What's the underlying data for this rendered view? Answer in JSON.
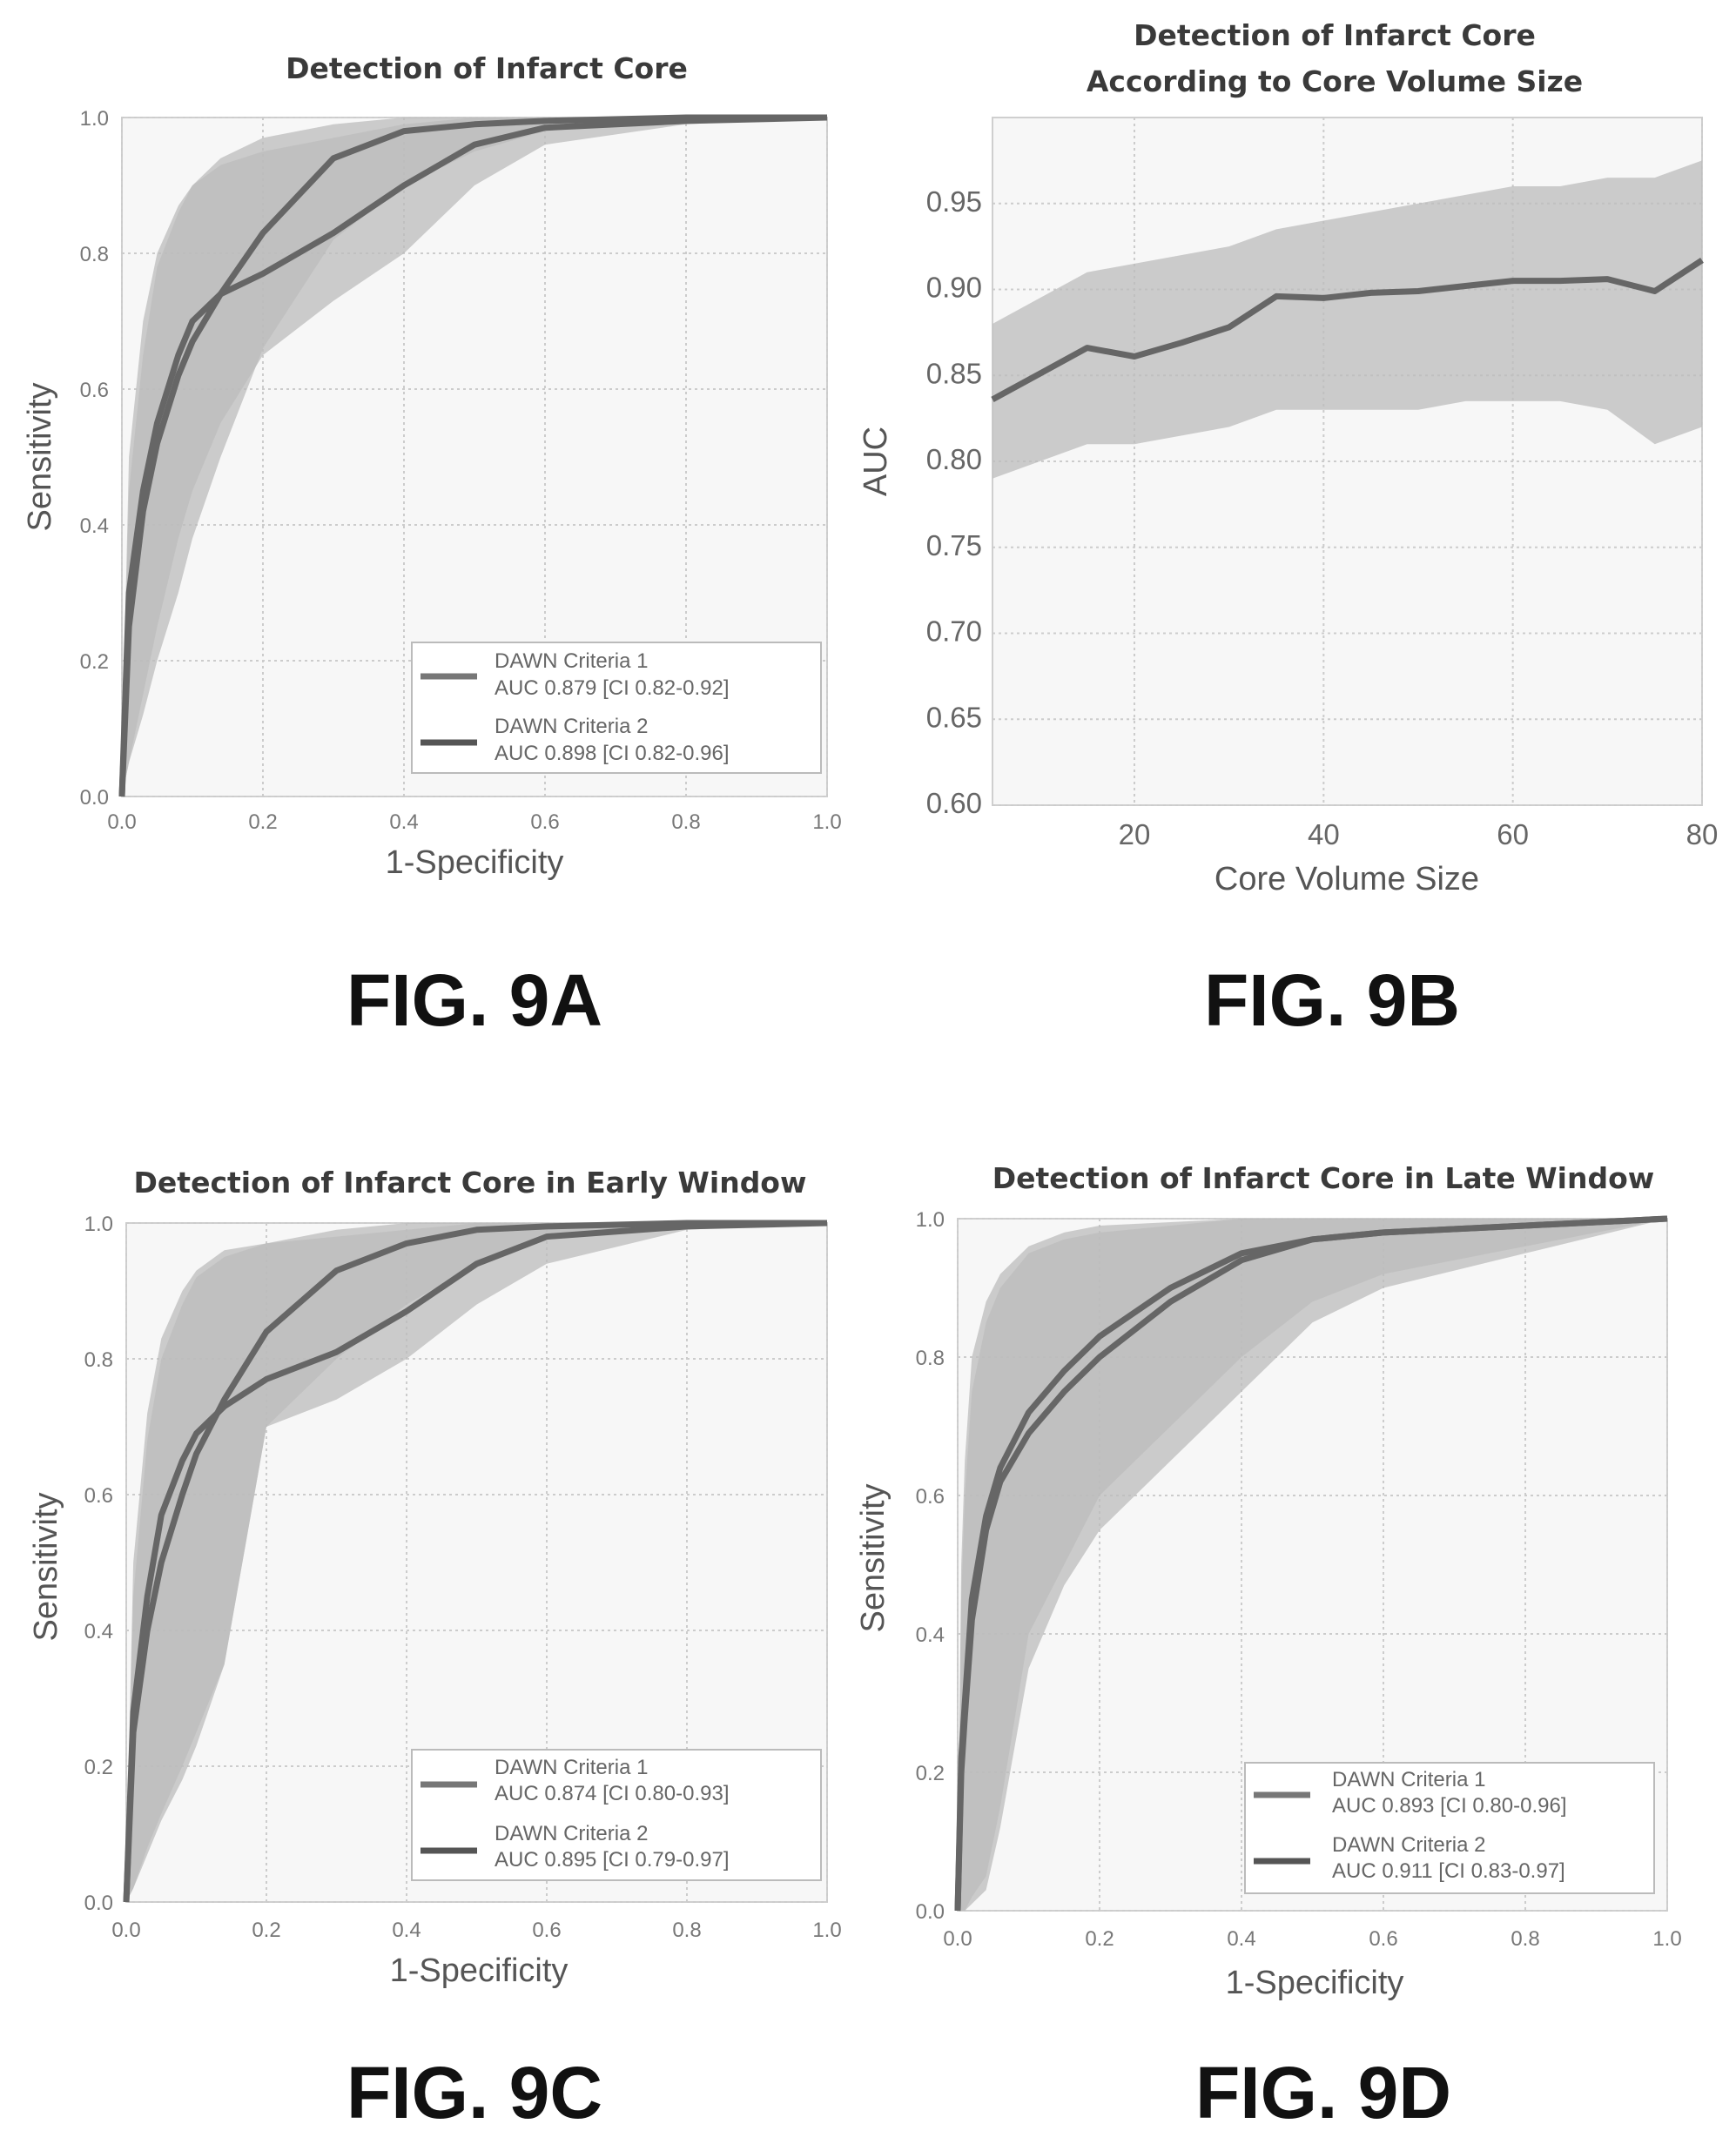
{
  "chart_data": [
    {
      "type": "line",
      "figure_label": "FIG. 9A",
      "title": "Detection of Infarct Core",
      "xlabel": "1-Specificity",
      "ylabel": "Sensitivity",
      "xlim": [
        0,
        1
      ],
      "ylim": [
        0,
        1
      ],
      "xticks": [
        "0.0",
        "0.2",
        "0.4",
        "0.6",
        "0.8",
        "1.0"
      ],
      "yticks": [
        "0.0",
        "0.2",
        "0.4",
        "0.6",
        "0.8",
        "1.0"
      ],
      "grid": true,
      "legend": "bottom-right",
      "series": [
        {
          "name": "DAWN Criteria 1",
          "auc_label": "AUC 0.879 [CI 0.82-0.92]",
          "x": [
            0,
            0.01,
            0.03,
            0.05,
            0.08,
            0.1,
            0.14,
            0.2,
            0.3,
            0.4,
            0.5,
            0.6,
            0.8,
            1.0
          ],
          "y": [
            0,
            0.3,
            0.45,
            0.55,
            0.65,
            0.7,
            0.74,
            0.77,
            0.83,
            0.9,
            0.96,
            0.985,
            0.995,
            1.0
          ],
          "band_low": [
            0,
            0.05,
            0.15,
            0.25,
            0.38,
            0.45,
            0.55,
            0.65,
            0.73,
            0.8,
            0.9,
            0.96,
            0.99,
            1.0
          ],
          "band_high": [
            0.05,
            0.5,
            0.7,
            0.8,
            0.87,
            0.9,
            0.93,
            0.95,
            0.97,
            0.99,
            1.0,
            1.0,
            1.0,
            1.0
          ]
        },
        {
          "name": "DAWN Criteria 2",
          "auc_label": "AUC 0.898 [CI 0.82-0.96]",
          "x": [
            0,
            0.01,
            0.03,
            0.05,
            0.08,
            0.1,
            0.14,
            0.2,
            0.3,
            0.4,
            0.5,
            0.6,
            0.8,
            1.0
          ],
          "y": [
            0,
            0.25,
            0.42,
            0.52,
            0.62,
            0.67,
            0.74,
            0.83,
            0.94,
            0.98,
            0.99,
            0.995,
            1.0,
            1.0
          ],
          "band_low": [
            0,
            0.05,
            0.12,
            0.2,
            0.3,
            0.38,
            0.5,
            0.66,
            0.82,
            0.9,
            0.95,
            0.98,
            0.995,
            1.0
          ],
          "band_high": [
            0.05,
            0.45,
            0.65,
            0.78,
            0.86,
            0.9,
            0.94,
            0.97,
            0.99,
            1.0,
            1.0,
            1.0,
            1.0,
            1.0
          ]
        }
      ]
    },
    {
      "type": "line",
      "figure_label": "FIG. 9B",
      "title": "Detection of Infarct Core",
      "subtitle": "According to Core Volume Size",
      "xlabel": "Core Volume Size",
      "ylabel": "AUC",
      "xlim": [
        5,
        80
      ],
      "ylim": [
        0.6,
        1.0
      ],
      "xticks": [
        "20",
        "40",
        "60",
        "80"
      ],
      "yticks": [
        "0.60",
        "0.65",
        "0.70",
        "0.75",
        "0.80",
        "0.85",
        "0.90",
        "0.95"
      ],
      "grid": true,
      "series": [
        {
          "x": [
            5,
            10,
            15,
            20,
            25,
            30,
            35,
            40,
            45,
            50,
            55,
            60,
            65,
            70,
            75,
            80
          ],
          "y": [
            0.836,
            0.851,
            0.866,
            0.861,
            0.869,
            0.878,
            0.896,
            0.895,
            0.898,
            0.899,
            0.902,
            0.905,
            0.905,
            0.906,
            0.899,
            0.917
          ],
          "band_low": [
            0.79,
            0.8,
            0.81,
            0.81,
            0.815,
            0.82,
            0.83,
            0.83,
            0.83,
            0.83,
            0.835,
            0.835,
            0.835,
            0.83,
            0.81,
            0.82
          ],
          "band_high": [
            0.88,
            0.895,
            0.91,
            0.915,
            0.92,
            0.925,
            0.935,
            0.94,
            0.945,
            0.95,
            0.955,
            0.96,
            0.96,
            0.965,
            0.965,
            0.975
          ]
        }
      ]
    },
    {
      "type": "line",
      "figure_label": "FIG. 9C",
      "title": "Detection of Infarct Core in Early Window",
      "xlabel": "1-Specificity",
      "ylabel": "Sensitivity",
      "xlim": [
        0,
        1
      ],
      "ylim": [
        0,
        1
      ],
      "xticks": [
        "0.0",
        "0.2",
        "0.4",
        "0.6",
        "0.8",
        "1.0"
      ],
      "yticks": [
        "0.0",
        "0.2",
        "0.4",
        "0.6",
        "0.8",
        "1.0"
      ],
      "grid": true,
      "legend": "bottom-right",
      "series": [
        {
          "name": "DAWN Criteria 1",
          "auc_label": "AUC 0.874 [CI 0.80-0.93]",
          "x": [
            0,
            0.01,
            0.03,
            0.05,
            0.08,
            0.1,
            0.14,
            0.2,
            0.3,
            0.4,
            0.5,
            0.6,
            0.8,
            1.0
          ],
          "y": [
            0,
            0.28,
            0.45,
            0.57,
            0.65,
            0.69,
            0.73,
            0.77,
            0.81,
            0.87,
            0.94,
            0.98,
            0.995,
            1.0
          ],
          "band_low": [
            0,
            0.02,
            0.08,
            0.13,
            0.2,
            0.25,
            0.35,
            0.7,
            0.74,
            0.8,
            0.88,
            0.94,
            0.99,
            1.0
          ],
          "band_high": [
            0.05,
            0.5,
            0.72,
            0.83,
            0.9,
            0.93,
            0.96,
            0.97,
            0.98,
            0.99,
            1.0,
            1.0,
            1.0,
            1.0
          ]
        },
        {
          "name": "DAWN Criteria 2",
          "auc_label": "AUC 0.895 [CI 0.79-0.97]",
          "x": [
            0,
            0.01,
            0.03,
            0.05,
            0.08,
            0.1,
            0.14,
            0.2,
            0.3,
            0.4,
            0.5,
            0.6,
            0.8,
            1.0
          ],
          "y": [
            0,
            0.25,
            0.4,
            0.5,
            0.6,
            0.66,
            0.74,
            0.84,
            0.93,
            0.97,
            0.99,
            0.995,
            1.0,
            1.0
          ],
          "band_low": [
            0,
            0.02,
            0.07,
            0.12,
            0.18,
            0.23,
            0.35,
            0.7,
            0.8,
            0.88,
            0.94,
            0.98,
            0.995,
            1.0
          ],
          "band_high": [
            0.05,
            0.45,
            0.68,
            0.8,
            0.88,
            0.92,
            0.95,
            0.97,
            0.99,
            1.0,
            1.0,
            1.0,
            1.0,
            1.0
          ]
        }
      ]
    },
    {
      "type": "line",
      "figure_label": "FIG. 9D",
      "title": "Detection of Infarct Core in Late Window",
      "xlabel": "1-Specificity",
      "ylabel": "Sensitivity",
      "xlim": [
        0,
        1
      ],
      "ylim": [
        0,
        1
      ],
      "xticks": [
        "0.0",
        "0.2",
        "0.4",
        "0.6",
        "0.8",
        "1.0"
      ],
      "yticks": [
        "0.0",
        "0.2",
        "0.4",
        "0.6",
        "0.8",
        "1.0"
      ],
      "grid": true,
      "legend": "bottom-right",
      "series": [
        {
          "name": "DAWN Criteria 1",
          "auc_label": "AUC 0.893 [CI 0.80-0.96]",
          "x": [
            0,
            0.005,
            0.01,
            0.02,
            0.04,
            0.06,
            0.1,
            0.15,
            0.2,
            0.3,
            0.4,
            0.5,
            0.6,
            0.8,
            1.0
          ],
          "y": [
            0,
            0.2,
            0.28,
            0.42,
            0.55,
            0.62,
            0.69,
            0.75,
            0.8,
            0.88,
            0.94,
            0.97,
            0.98,
            0.99,
            1.0
          ],
          "band_low": [
            0,
            0,
            0,
            0.01,
            0.03,
            0.12,
            0.35,
            0.47,
            0.55,
            0.65,
            0.75,
            0.85,
            0.9,
            0.95,
            1.0
          ],
          "band_high": [
            0.05,
            0.45,
            0.6,
            0.75,
            0.85,
            0.9,
            0.95,
            0.97,
            0.98,
            0.99,
            1.0,
            1.0,
            1.0,
            1.0,
            1.0
          ]
        },
        {
          "name": "DAWN Criteria 2",
          "auc_label": "AUC 0.911 [CI 0.83-0.97]",
          "x": [
            0,
            0.005,
            0.01,
            0.02,
            0.04,
            0.06,
            0.1,
            0.15,
            0.2,
            0.3,
            0.4,
            0.5,
            0.6,
            0.8,
            1.0
          ],
          "y": [
            0,
            0.22,
            0.3,
            0.45,
            0.57,
            0.64,
            0.72,
            0.78,
            0.83,
            0.9,
            0.95,
            0.97,
            0.98,
            0.99,
            1.0
          ],
          "band_low": [
            0,
            0,
            0,
            0.02,
            0.05,
            0.15,
            0.4,
            0.5,
            0.6,
            0.7,
            0.8,
            0.88,
            0.92,
            0.96,
            1.0
          ],
          "band_high": [
            0.05,
            0.5,
            0.65,
            0.8,
            0.88,
            0.92,
            0.96,
            0.98,
            0.99,
            0.995,
            1.0,
            1.0,
            1.0,
            1.0,
            1.0
          ]
        }
      ]
    }
  ]
}
